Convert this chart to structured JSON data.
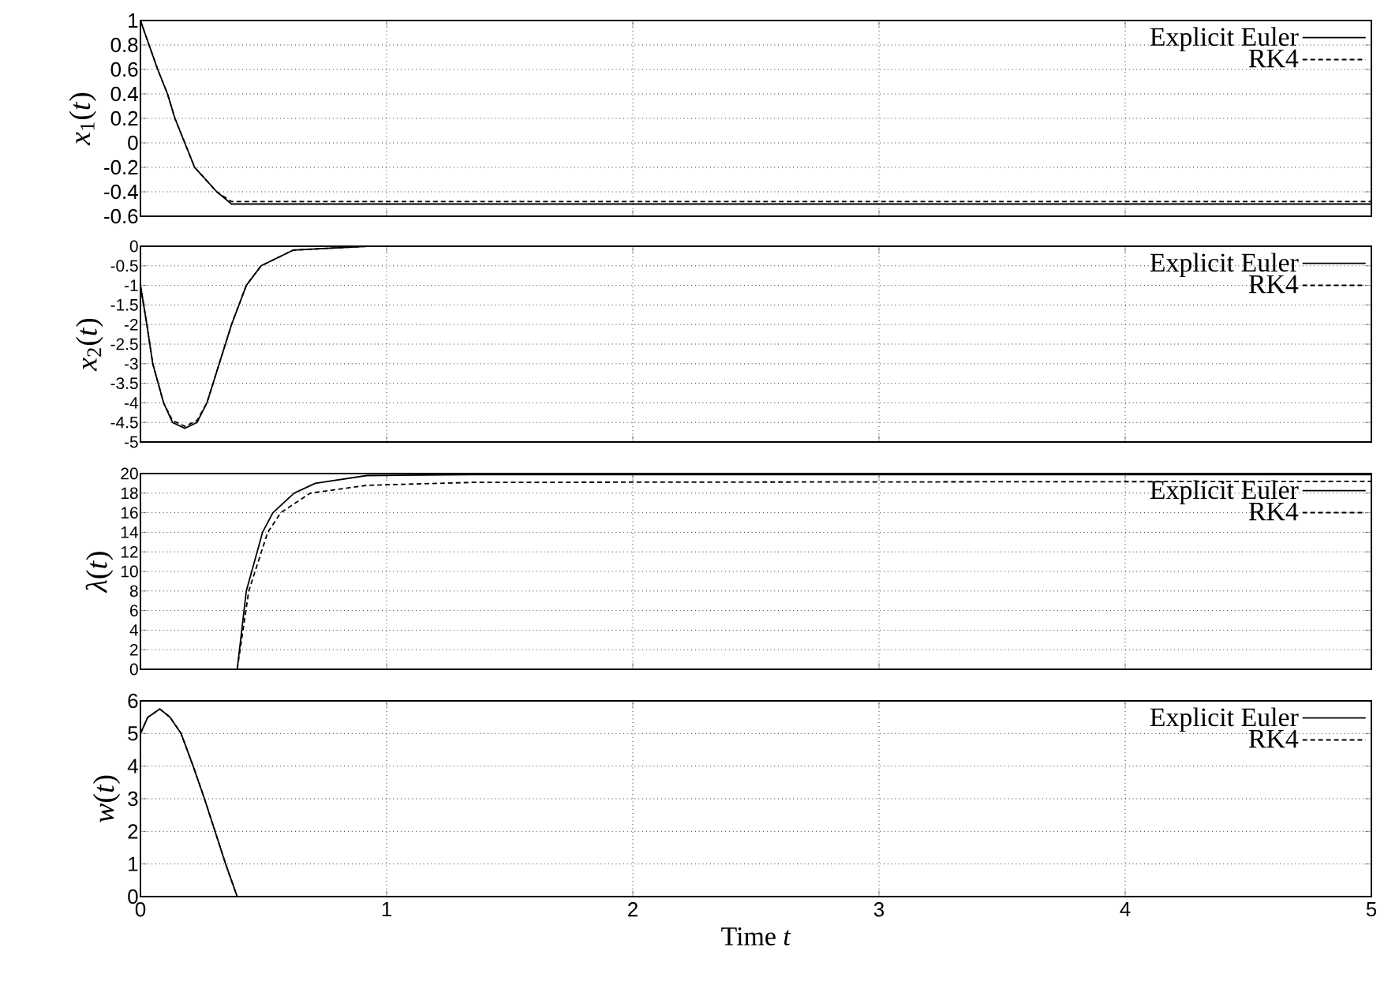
{
  "chart_data": [
    {
      "type": "line",
      "ylabel": "*x*$_{1}$(*t*)",
      "xlim": [
        0,
        5
      ],
      "xticks": [
        0,
        1,
        2,
        3,
        4,
        5
      ],
      "ylim": [
        -0.6,
        1
      ],
      "yticks": [
        -0.6,
        -0.4,
        -0.2,
        0,
        0.2,
        0.4,
        0.6,
        0.8,
        1
      ],
      "grid": true,
      "legend": "top right",
      "tick_labels": "y",
      "series": [
        {
          "name": "Explicit Euler",
          "color": "#000000",
          "line_style": "solid",
          "x": [
            0,
            0.035,
            0.07,
            0.11,
            0.14,
            0.18,
            0.22,
            0.31,
            0.37,
            5
          ],
          "values": [
            1,
            0.8,
            0.6,
            0.4,
            0.2,
            0,
            -0.2,
            -0.4,
            -0.5,
            -0.5
          ]
        },
        {
          "name": "RK4",
          "color": "#000000",
          "line_style": "dashed",
          "x": [
            0,
            0.035,
            0.07,
            0.11,
            0.14,
            0.18,
            0.22,
            0.31,
            0.37,
            5
          ],
          "values": [
            1,
            0.8,
            0.6,
            0.4,
            0.2,
            0,
            -0.2,
            -0.4,
            -0.48,
            -0.48
          ]
        }
      ]
    },
    {
      "type": "line",
      "ylabel": "*x*$_{2}$(*t*)",
      "xlim": [
        0,
        5
      ],
      "xticks": [
        0,
        1,
        2,
        3,
        4,
        5
      ],
      "ylim": [
        -5,
        0
      ],
      "yticks": [
        -5,
        -4.5,
        -4,
        -3.5,
        -3,
        -2.5,
        -2,
        -1.5,
        -1,
        -0.5,
        0
      ],
      "grid": true,
      "legend": "top right",
      "tick_labels": "y",
      "series": [
        {
          "name": "Explicit Euler",
          "color": "#000000",
          "line_style": "solid",
          "x": [
            0,
            0.026,
            0.05,
            0.094,
            0.13,
            0.18,
            0.23,
            0.27,
            0.32,
            0.37,
            0.43,
            0.49,
            0.62,
            0.92,
            5
          ],
          "values": [
            -1,
            -2,
            -3,
            -4,
            -4.5,
            -4.65,
            -4.5,
            -4,
            -3,
            -2,
            -1,
            -0.5,
            -0.1,
            0,
            0
          ]
        },
        {
          "name": "RK4",
          "color": "#000000",
          "line_style": "dashed",
          "x": [
            0,
            0.026,
            0.05,
            0.094,
            0.13,
            0.18,
            0.23,
            0.27,
            0.32,
            0.37,
            0.43,
            0.49,
            0.62,
            0.92,
            5
          ],
          "values": [
            -1,
            -2,
            -3,
            -4,
            -4.45,
            -4.6,
            -4.45,
            -4,
            -3,
            -2,
            -1,
            -0.5,
            -0.1,
            0,
            0
          ]
        }
      ]
    },
    {
      "type": "line",
      "ylabel": "*λ*(*t*)",
      "xlim": [
        0,
        5
      ],
      "xticks": [
        0,
        1,
        2,
        3,
        4,
        5
      ],
      "ylim": [
        0,
        20
      ],
      "yticks": [
        0,
        2,
        4,
        6,
        8,
        10,
        12,
        14,
        16,
        18,
        20
      ],
      "grid": true,
      "legend": "top right",
      "tick_labels": "y",
      "series": [
        {
          "name": "Explicit Euler",
          "color": "#000000",
          "line_style": "solid",
          "x": [
            0.393,
            0.43,
            0.474,
            0.496,
            0.538,
            0.624,
            0.71,
            0.92,
            1.35,
            5
          ],
          "values": [
            0,
            8,
            12,
            14,
            16,
            18,
            19,
            19.8,
            19.9,
            19.9
          ]
        },
        {
          "name": "RK4",
          "color": "#000000",
          "line_style": "dashed",
          "x": [
            0.393,
            0.44,
            0.517,
            0.57,
            0.69,
            0.92,
            1.35,
            5
          ],
          "values": [
            0,
            8,
            14,
            16,
            18,
            18.8,
            19.1,
            19.2
          ]
        }
      ]
    },
    {
      "type": "line",
      "ylabel": "*w*(*t*)",
      "xlabel": "Time *t*",
      "xlim": [
        0,
        5
      ],
      "xticks": [
        0,
        1,
        2,
        3,
        4,
        5
      ],
      "ylim": [
        0,
        6
      ],
      "yticks": [
        0,
        1,
        2,
        3,
        4,
        5,
        6
      ],
      "grid": true,
      "legend": "top right",
      "series": [
        {
          "name": "Explicit Euler",
          "color": "#000000",
          "line_style": "solid",
          "x": [
            0,
            0.03,
            0.079,
            0.12,
            0.165,
            0.214,
            0.26,
            0.303,
            0.346,
            0.393
          ],
          "values": [
            5,
            5.5,
            5.75,
            5.5,
            5,
            4,
            3,
            2,
            1,
            0
          ]
        },
        {
          "name": "RK4",
          "color": "#000000",
          "line_style": "dashed",
          "x": [
            0,
            0.03,
            0.079,
            0.12,
            0.165,
            0.214,
            0.26,
            0.303,
            0.346,
            0.393
          ],
          "values": [
            5,
            5.5,
            5.75,
            5.5,
            5,
            4,
            3,
            2,
            1,
            0
          ]
        }
      ]
    }
  ]
}
